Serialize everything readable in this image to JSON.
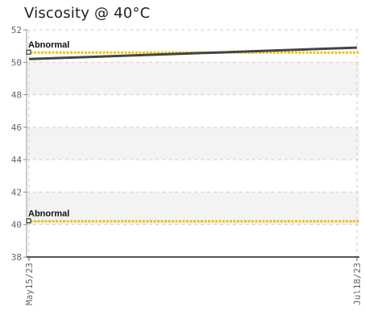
{
  "chart_data": {
    "type": "line",
    "title": "Viscosity @ 40°C",
    "xlabel": "",
    "ylabel": "",
    "ylim": [
      38,
      52
    ],
    "yticks": [
      38,
      40,
      42,
      44,
      46,
      48,
      50,
      52
    ],
    "ytick_labels": [
      "38",
      "40",
      "42",
      "44",
      "46",
      "48",
      "50",
      "52"
    ],
    "x_categories": [
      "May15/23",
      "Jul18/23"
    ],
    "series": [
      {
        "values": [
          50.2,
          50.9
        ],
        "color": "#444444"
      }
    ],
    "thresholds": [
      {
        "label": "Abnormal",
        "value": 50.6,
        "color": "#e8c41a"
      },
      {
        "label": "Abnormal",
        "value": 40.2,
        "color": "#e8c41a"
      }
    ],
    "grid": true
  }
}
